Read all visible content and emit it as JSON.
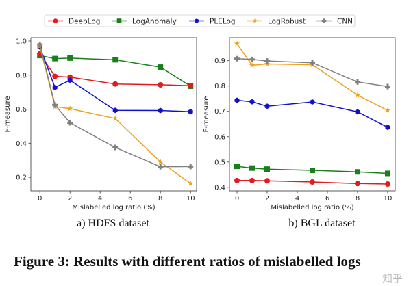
{
  "legend": {
    "placement": "top-center",
    "entries": [
      {
        "name": "DeepLog",
        "color": "#e41a1c",
        "marker": "circle"
      },
      {
        "name": "LogAnomaly",
        "color": "#1a7f1a",
        "marker": "square"
      },
      {
        "name": "PLELog",
        "color": "#1010d0",
        "marker": "hexagon"
      },
      {
        "name": "LogRobust",
        "color": "#f0a020",
        "marker": "star"
      },
      {
        "name": "CNN",
        "color": "#808080",
        "marker": "plus"
      }
    ]
  },
  "chart_data": [
    {
      "type": "line",
      "subcaption": "a) HDFS dataset",
      "xlabel": "Mislabelled log ratio (%)",
      "ylabel": "F-measure",
      "x": [
        0,
        1,
        2,
        5,
        8,
        10
      ],
      "xticks": [
        "0",
        "2",
        "4",
        "6",
        "8",
        "10"
      ],
      "yticks": [
        "0.2",
        "0.4",
        "0.6",
        "0.8",
        "1.0"
      ],
      "xlim": [
        -0.6,
        10.4
      ],
      "ylim": [
        0.12,
        1.02
      ],
      "grid": false,
      "series": [
        {
          "name": "DeepLog",
          "values": [
            0.925,
            0.793,
            0.788,
            0.748,
            0.743,
            0.738
          ]
        },
        {
          "name": "LogAnomaly",
          "values": [
            0.915,
            0.897,
            0.9,
            0.89,
            0.847,
            0.735
          ]
        },
        {
          "name": "PLELog",
          "values": [
            0.965,
            0.728,
            0.77,
            0.593,
            0.592,
            0.585
          ]
        },
        {
          "name": "LogRobust",
          "values": [
            0.97,
            0.615,
            0.603,
            0.545,
            0.29,
            0.163
          ]
        },
        {
          "name": "CNN",
          "values": [
            0.98,
            0.625,
            0.52,
            0.375,
            0.262,
            0.263
          ]
        }
      ]
    },
    {
      "type": "line",
      "subcaption": "b) BGL dataset",
      "xlabel": "Mislabelled log ratio (%)",
      "ylabel": "F-measure",
      "x": [
        0,
        1,
        2,
        5,
        8,
        10
      ],
      "xticks": [
        "0",
        "2",
        "4",
        "6",
        "8",
        "10"
      ],
      "yticks": [
        "0.4",
        "0.5",
        "0.6",
        "0.7",
        "0.8",
        "0.9"
      ],
      "xlim": [
        -0.5,
        10.5
      ],
      "ylim": [
        0.386,
        0.991
      ],
      "grid": false,
      "series": [
        {
          "name": "DeepLog",
          "values": [
            0.427,
            0.427,
            0.426,
            0.421,
            0.415,
            0.413
          ]
        },
        {
          "name": "LogAnomaly",
          "values": [
            0.483,
            0.476,
            0.472,
            0.467,
            0.461,
            0.455
          ]
        },
        {
          "name": "PLELog",
          "values": [
            0.744,
            0.738,
            0.72,
            0.737,
            0.698,
            0.637
          ]
        },
        {
          "name": "LogRobust",
          "values": [
            0.967,
            0.882,
            0.887,
            0.884,
            0.764,
            0.704
          ]
        },
        {
          "name": "CNN",
          "values": [
            0.908,
            0.905,
            0.899,
            0.892,
            0.816,
            0.798
          ]
        }
      ]
    }
  ],
  "caption": "Figure 3: Results with different ratios of mislabelled logs",
  "watermark": "知乎"
}
